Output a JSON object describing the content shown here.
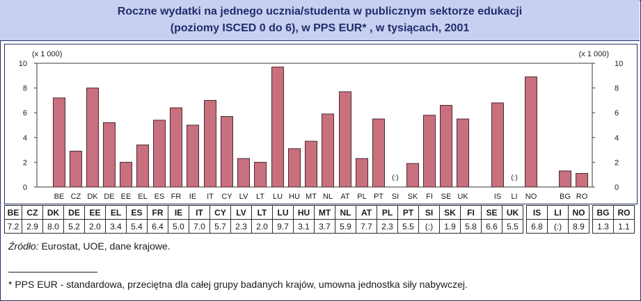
{
  "title": {
    "line1": "Roczne wydatki na jednego ucznia/studenta w publicznym sektorze edukacji",
    "line2": "(poziomy ISCED 0 do 6), w PPS EUR* , w tysiącach, 2001"
  },
  "colors": {
    "bar_fill": "#c8707e",
    "bar_stroke": "#4a2a30",
    "title_bg": "#c9cff0",
    "title_text": "#1f2d6b",
    "frame": "#1f2d6b"
  },
  "chart_data": {
    "type": "bar",
    "unit_left": "(x 1 000)",
    "unit_right": "(x 1 000)",
    "ylim": [
      0,
      10
    ],
    "yticks": [
      0,
      2,
      4,
      6,
      8,
      10
    ],
    "grid": false,
    "categories": [
      "BE",
      "CZ",
      "DK",
      "DE",
      "EE",
      "EL",
      "ES",
      "FR",
      "IE",
      "IT",
      "CY",
      "LV",
      "LT",
      "LU",
      "HU",
      "MT",
      "NL",
      "AT",
      "PL",
      "PT",
      "SI",
      "SK",
      "FI",
      "SE",
      "UK",
      "IS",
      "LI",
      "NO",
      "BG",
      "RO"
    ],
    "values": [
      7.2,
      2.9,
      8.0,
      5.2,
      2.0,
      3.4,
      5.4,
      6.4,
      5.0,
      7.0,
      5.7,
      2.3,
      2.0,
      9.7,
      3.1,
      3.7,
      5.9,
      7.7,
      2.3,
      5.5,
      null,
      1.9,
      5.8,
      6.6,
      5.5,
      6.8,
      null,
      8.9,
      1.3,
      1.1
    ],
    "value_labels": [
      "7.2",
      "2.9",
      "8.0",
      "5.2",
      "2.0",
      "3.4",
      "5.4",
      "6.4",
      "5.0",
      "7.0",
      "5.7",
      "2.3",
      "2.0",
      "9.7",
      "3.1",
      "3.7",
      "5.9",
      "7.7",
      "2.3",
      "5.5",
      "(:)",
      "1.9",
      "5.8",
      "6.6",
      "5.5",
      "6.8",
      "(:)",
      "8.9",
      "1.3",
      "1.1"
    ],
    "missing_marker": "(:)"
  },
  "source": {
    "label": "Źródło:",
    "text": " Eurostat, UOE, dane krajowe."
  },
  "footnote": "* PPS EUR - standardowa, przeciętna dla całej grupy badanych krajów, umowna jednostka siły nabywczej."
}
